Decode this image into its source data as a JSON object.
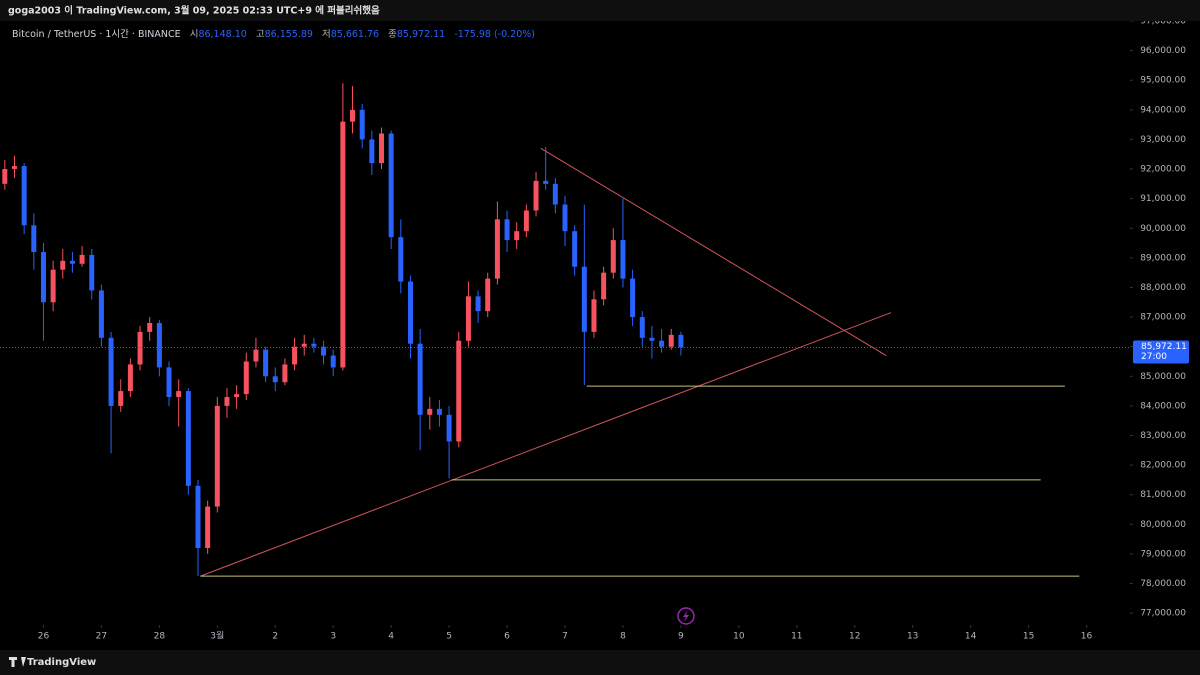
{
  "header": {
    "publish_note": "goga2003 이 TradingView.com, 3월 09, 2025 02:33 UTC+9 에 퍼블리쉬했음"
  },
  "footer": {
    "brand": "TradingView"
  },
  "chart_data": {
    "type": "candlestick",
    "symbol": "Bitcoin / TetherUS · 1시간 · BINANCE",
    "legend": {
      "open_label": "시",
      "open": "86,148.10",
      "high_label": "고",
      "high": "86,155.89",
      "low_label": "저",
      "low": "85,661.76",
      "close_label": "종",
      "close": "85,972.11",
      "change": "-175.98 (-0.20%)"
    },
    "x": [
      -16,
      -12,
      -8,
      -4,
      0,
      4,
      8,
      12,
      16,
      20,
      24,
      28,
      32,
      36,
      40,
      44,
      48,
      52,
      56,
      60,
      64,
      68,
      72,
      76,
      80,
      84,
      88,
      92,
      96,
      100,
      104,
      108,
      112,
      116,
      120,
      124,
      128,
      132,
      136,
      140,
      144,
      148,
      152,
      156,
      160,
      164,
      168,
      172,
      176,
      180,
      184,
      188,
      192,
      196,
      200,
      204,
      208,
      212,
      216,
      220,
      224,
      228,
      232,
      236,
      240,
      244,
      248,
      252,
      256,
      260,
      264
    ],
    "open": [
      91500,
      92000,
      92100,
      90100,
      89200,
      87500,
      88600,
      88900,
      88800,
      89100,
      87900,
      86300,
      84000,
      84500,
      85400,
      86500,
      86800,
      85300,
      84300,
      84500,
      81300,
      79200,
      80600,
      84000,
      84300,
      84400,
      85500,
      85900,
      85000,
      84800,
      85400,
      86000,
      86100,
      86000,
      85700,
      85300,
      93600,
      94000,
      93000,
      92200,
      93200,
      89700,
      88200,
      86100,
      83700,
      83900,
      83700,
      82800,
      86200,
      87700,
      87200,
      88300,
      90300,
      89600,
      89900,
      90600,
      91600,
      91500,
      90800,
      89900,
      88700,
      86500,
      87600,
      88500,
      89600,
      88300,
      87000,
      86300,
      86200,
      86000,
      86400
    ],
    "high": [
      92300,
      92450,
      92200,
      90500,
      89500,
      88900,
      89300,
      89200,
      89400,
      89300,
      88100,
      86500,
      84900,
      85600,
      86700,
      87000,
      86900,
      85500,
      84900,
      84600,
      81500,
      80800,
      84300,
      84600,
      84700,
      85800,
      86300,
      86000,
      85300,
      85600,
      86300,
      86400,
      86300,
      86200,
      85900,
      94900,
      94800,
      94200,
      93300,
      93400,
      93300,
      90300,
      88400,
      86600,
      84300,
      84200,
      84000,
      86500,
      88200,
      87900,
      88500,
      90900,
      90600,
      90200,
      90800,
      91900,
      92750,
      91700,
      91100,
      90100,
      90800,
      87900,
      88700,
      90000,
      91000,
      88600,
      87200,
      86700,
      86600,
      86600,
      86500
    ],
    "low": [
      91300,
      91700,
      89800,
      88600,
      86200,
      87200,
      88300,
      88500,
      88700,
      87600,
      86000,
      82400,
      83800,
      84300,
      85200,
      86200,
      85000,
      84000,
      83300,
      81000,
      78250,
      79000,
      80400,
      83600,
      83900,
      84200,
      85300,
      84800,
      84500,
      84700,
      85200,
      85700,
      85800,
      85400,
      85000,
      85200,
      93200,
      92700,
      91800,
      92000,
      89300,
      87800,
      85600,
      82500,
      83200,
      83300,
      81550,
      82600,
      86000,
      86800,
      87000,
      88100,
      89200,
      89300,
      89700,
      90400,
      91300,
      90500,
      89400,
      88400,
      84700,
      86300,
      87400,
      88300,
      88000,
      86700,
      86000,
      85600,
      85800,
      85900,
      85700
    ],
    "close": [
      92000,
      92100,
      90100,
      89200,
      87500,
      88600,
      88900,
      88800,
      89100,
      87900,
      86300,
      84000,
      84500,
      85400,
      86500,
      86800,
      85300,
      84300,
      84500,
      81300,
      79200,
      80600,
      84000,
      84300,
      84400,
      85500,
      85900,
      85000,
      84800,
      85400,
      86000,
      86100,
      86000,
      85700,
      85300,
      93600,
      94000,
      93000,
      92200,
      93200,
      89700,
      88200,
      86100,
      83700,
      83900,
      83700,
      82800,
      86200,
      87700,
      87200,
      88300,
      90300,
      89600,
      89900,
      90600,
      91600,
      91500,
      90800,
      89900,
      88700,
      86500,
      87600,
      88500,
      89600,
      88300,
      87000,
      86300,
      86200,
      86000,
      86400,
      85972.11
    ],
    "up_color": "#f7525f",
    "down_color": "#2962ff",
    "xlim": [
      -18,
      450
    ],
    "xticks": [
      {
        "value": 0,
        "label": "26"
      },
      {
        "value": 24,
        "label": "27"
      },
      {
        "value": 48,
        "label": "28"
      },
      {
        "value": 72,
        "label": "3월"
      },
      {
        "value": 96,
        "label": "2"
      },
      {
        "value": 120,
        "label": "3"
      },
      {
        "value": 144,
        "label": "4"
      },
      {
        "value": 168,
        "label": "5"
      },
      {
        "value": 192,
        "label": "6"
      },
      {
        "value": 216,
        "label": "7"
      },
      {
        "value": 240,
        "label": "8"
      },
      {
        "value": 264,
        "label": "9"
      },
      {
        "value": 288,
        "label": "10"
      },
      {
        "value": 312,
        "label": "11"
      },
      {
        "value": 336,
        "label": "12"
      },
      {
        "value": 360,
        "label": "13"
      },
      {
        "value": 384,
        "label": "14"
      },
      {
        "value": 408,
        "label": "15"
      },
      {
        "value": 432,
        "label": "16"
      }
    ],
    "ylim": [
      76600,
      97000
    ],
    "yticks": [
      {
        "value": 77000,
        "label": "77,000.00"
      },
      {
        "value": 78000,
        "label": "78,000.00"
      },
      {
        "value": 79000,
        "label": "79,000.00"
      },
      {
        "value": 80000,
        "label": "80,000.00"
      },
      {
        "value": 81000,
        "label": "81,000.00"
      },
      {
        "value": 82000,
        "label": "82,000.00"
      },
      {
        "value": 83000,
        "label": "83,000.00"
      },
      {
        "value": 84000,
        "label": "84,000.00"
      },
      {
        "value": 85000,
        "label": "85,000.00"
      },
      {
        "value": 86000,
        "label": "86,000.00"
      },
      {
        "value": 87000,
        "label": "87,000.00"
      },
      {
        "value": 88000,
        "label": "88,000.00"
      },
      {
        "value": 89000,
        "label": "89,000.00"
      },
      {
        "value": 90000,
        "label": "90,000.00"
      },
      {
        "value": 91000,
        "label": "91,000.00"
      },
      {
        "value": 92000,
        "label": "92,000.00"
      },
      {
        "value": 93000,
        "label": "93,000.00"
      },
      {
        "value": 94000,
        "label": "94,000.00"
      },
      {
        "value": 95000,
        "label": "95,000.00"
      },
      {
        "value": 96000,
        "label": "96,000.00"
      },
      {
        "value": 97000,
        "label": "97,000.00"
      }
    ],
    "last_price": {
      "value": 85972.11,
      "label": "85,972.11"
    },
    "countdown": "27:00",
    "drawings": [
      {
        "color": "#d4555c",
        "x": [
          206,
          349
        ],
        "y": [
          92700,
          85700
        ]
      },
      {
        "color": "#d4555c",
        "x": [
          65,
          351
        ],
        "y": [
          78250,
          87150
        ]
      },
      {
        "color": "#c9c27a",
        "x": [
          225,
          423
        ],
        "y": [
          84670,
          84670
        ]
      },
      {
        "color": "#c9c27a",
        "x": [
          169,
          413
        ],
        "y": [
          81500,
          81500
        ]
      },
      {
        "color": "#c9c27a",
        "x": [
          65,
          429
        ],
        "y": [
          78250,
          78250
        ]
      }
    ]
  }
}
